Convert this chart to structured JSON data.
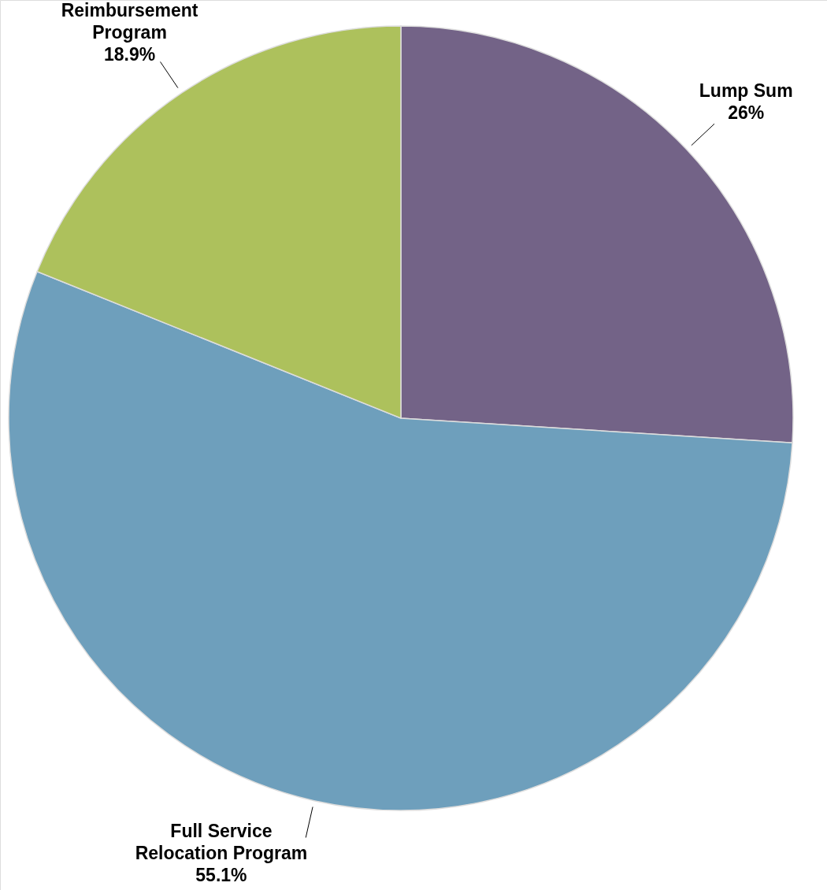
{
  "chart_data": {
    "type": "pie",
    "categories": [
      "Lump Sum",
      "Full Service Relocation Program",
      "Reimbursement Program"
    ],
    "values": [
      26,
      55.1,
      18.9
    ],
    "value_labels": [
      "26%",
      "55.1%",
      "18.9%"
    ],
    "colors": [
      "#736387",
      "#6e9fbc",
      "#adc15c"
    ]
  }
}
